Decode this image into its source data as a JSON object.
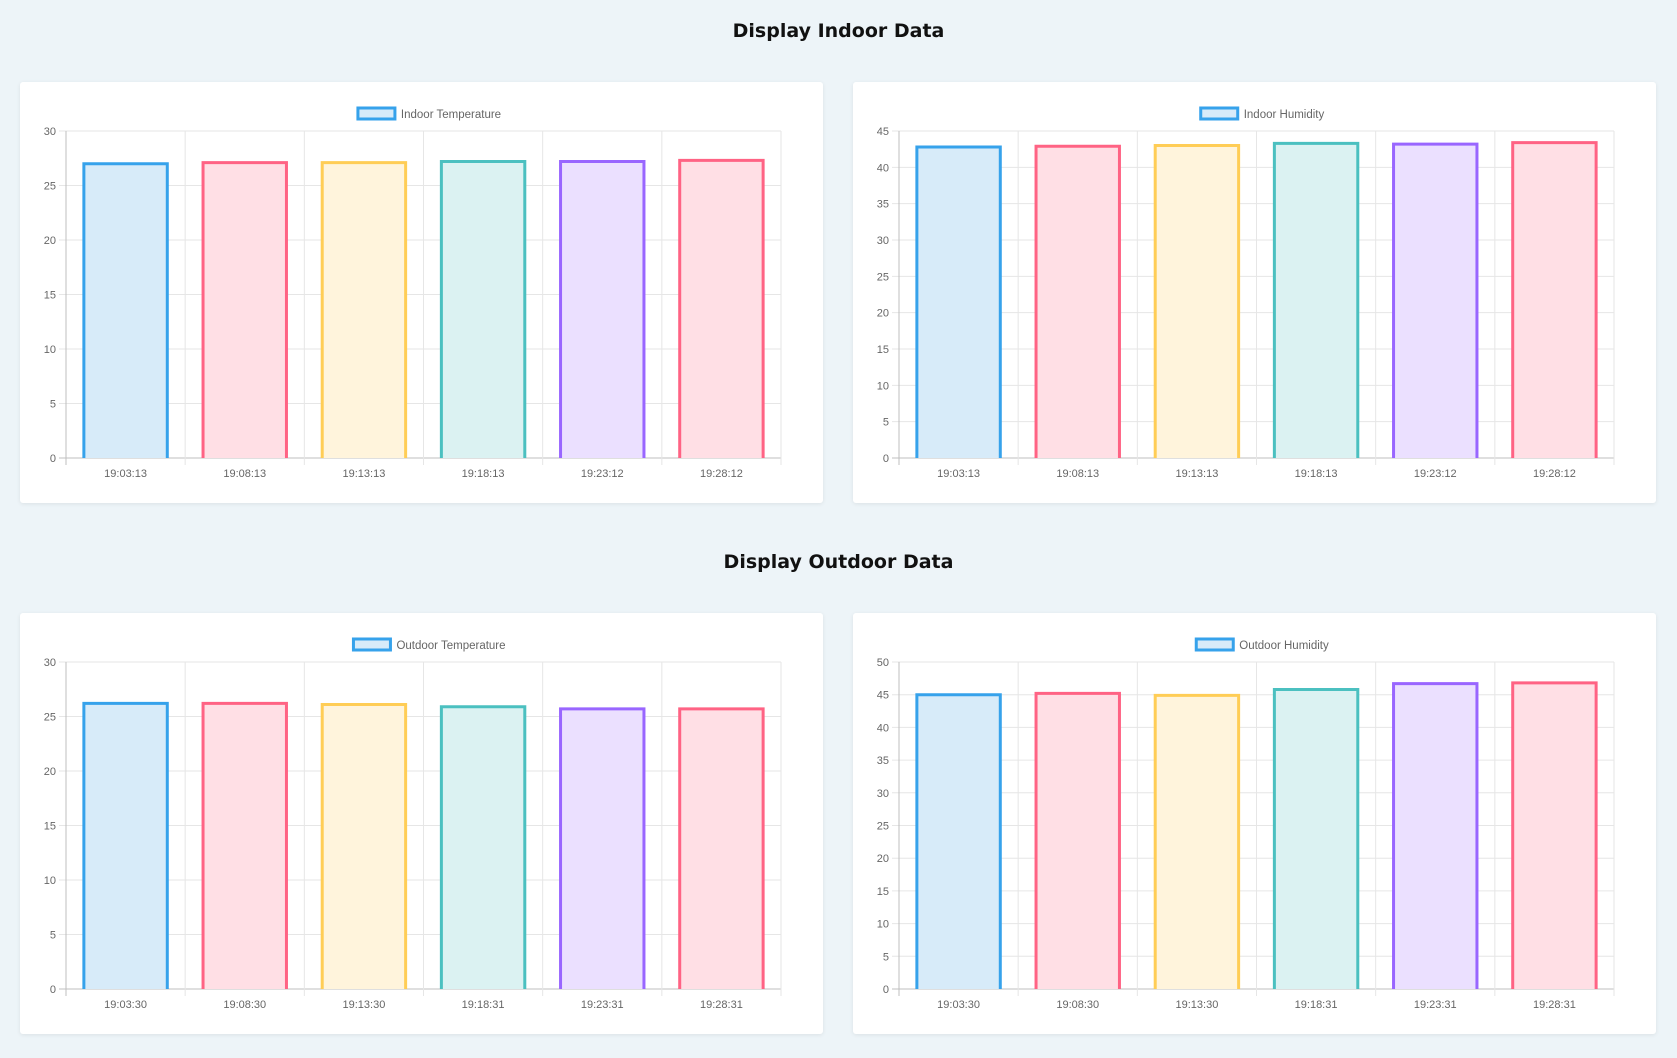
{
  "sections": [
    {
      "title": "Display Indoor Data"
    },
    {
      "title": "Display Outdoor Data"
    }
  ],
  "palette": {
    "borders": [
      "#36a2eb",
      "#ff6384",
      "#ffcd56",
      "#4bc0c0",
      "#9966ff",
      "#ff6384"
    ],
    "fills": [
      "#d7ebf9",
      "#ffdfe5",
      "#fff4dc",
      "#dbf2f2",
      "#ebe0ff",
      "#ffdfe5"
    ],
    "legend_border": "#36a2eb",
    "legend_fill": "#d7ebf9",
    "grid": "#e6e6e6",
    "axis": "#bfbfbf"
  },
  "chart_data": [
    {
      "id": "indoor-temperature",
      "type": "bar",
      "categories": [
        "19:03:13",
        "19:08:13",
        "19:13:13",
        "19:18:13",
        "19:23:12",
        "19:28:12"
      ],
      "series": [
        {
          "name": "Indoor Temperature",
          "values": [
            27.0,
            27.1,
            27.1,
            27.2,
            27.2,
            27.3
          ]
        }
      ],
      "ylim": [
        0,
        30
      ],
      "yticks": [
        0,
        5,
        10,
        15,
        20,
        25,
        30
      ],
      "grid": true,
      "legend": "top"
    },
    {
      "id": "indoor-humidity",
      "type": "bar",
      "categories": [
        "19:03:13",
        "19:08:13",
        "19:13:13",
        "19:18:13",
        "19:23:12",
        "19:28:12"
      ],
      "series": [
        {
          "name": "Indoor Humidity",
          "values": [
            42.8,
            42.9,
            43.0,
            43.3,
            43.2,
            43.4
          ]
        }
      ],
      "ylim": [
        0,
        45
      ],
      "yticks": [
        0,
        5,
        10,
        15,
        20,
        25,
        30,
        35,
        40,
        45
      ],
      "grid": true,
      "legend": "top"
    },
    {
      "id": "outdoor-temperature",
      "type": "bar",
      "categories": [
        "19:03:30",
        "19:08:30",
        "19:13:30",
        "19:18:31",
        "19:23:31",
        "19:28:31"
      ],
      "series": [
        {
          "name": "Outdoor Temperature",
          "values": [
            26.2,
            26.2,
            26.1,
            25.9,
            25.7,
            25.7
          ]
        }
      ],
      "ylim": [
        0,
        30
      ],
      "yticks": [
        0,
        5,
        10,
        15,
        20,
        25,
        30
      ],
      "grid": true,
      "legend": "top"
    },
    {
      "id": "outdoor-humidity",
      "type": "bar",
      "categories": [
        "19:03:30",
        "19:08:30",
        "19:13:30",
        "19:18:31",
        "19:23:31",
        "19:28:31"
      ],
      "series": [
        {
          "name": "Outdoor Humidity",
          "values": [
            45.0,
            45.2,
            44.9,
            45.8,
            46.7,
            46.8
          ]
        }
      ],
      "ylim": [
        0,
        50
      ],
      "yticks": [
        0,
        5,
        10,
        15,
        20,
        25,
        30,
        35,
        40,
        45,
        50
      ],
      "grid": true,
      "legend": "top"
    }
  ]
}
